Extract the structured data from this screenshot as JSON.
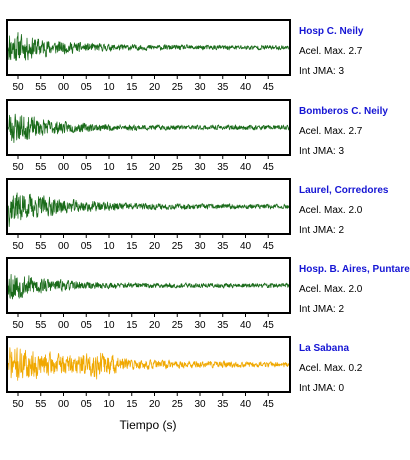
{
  "colors": {
    "trace_default": "#1a6b1a",
    "trace_last": "#f0a800",
    "station_name": "#1515d4"
  },
  "chart_data": {
    "type": "line",
    "xlabel": "Tiempo (s)",
    "tick_labels": [
      "50",
      "55",
      "00",
      "05",
      "10",
      "15",
      "20",
      "25",
      "30",
      "35",
      "40",
      "45"
    ],
    "grid": false,
    "panels": [
      {
        "name": "Hosp C. Neily",
        "accel_label": "Acel. Max. 2.7",
        "jma_label": "Int JMA: 3",
        "color": "#1a6b1a",
        "decay": 0.075,
        "seed": 11
      },
      {
        "name": "Bomberos C. Neily",
        "accel_label": "Acel. Max. 2.7",
        "jma_label": "Int JMA: 3",
        "color": "#1a6b1a",
        "decay": 0.08,
        "seed": 23
      },
      {
        "name": "Laurel, Corredores",
        "accel_label": "Acel. Max. 2.0",
        "jma_label": "Int JMA: 2",
        "color": "#1a6b1a",
        "decay": 0.06,
        "seed": 37
      },
      {
        "name": "Hosp. B. Aires, Puntare",
        "accel_label": "Acel. Max. 2.0",
        "jma_label": "Int JMA: 2",
        "color": "#1a6b1a",
        "decay": 0.09,
        "seed": 53
      },
      {
        "name": "La Sabana",
        "accel_label": "Acel. Max. 0.2",
        "jma_label": "Int JMA: 0",
        "color": "#f0a800",
        "decay": 0.04,
        "seed": 71
      }
    ]
  }
}
